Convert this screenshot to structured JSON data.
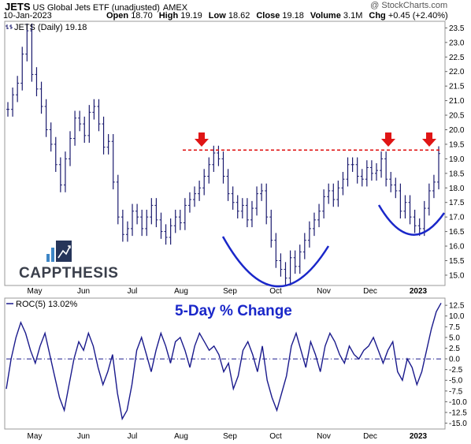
{
  "header": {
    "symbol": "JETS",
    "name": "US Global Jets ETF (unadjusted)",
    "exchange": "AMEX",
    "date": "10-Jan-2023",
    "open_label": "Open",
    "open": "18.70",
    "high_label": "High",
    "high": "19.19",
    "low_label": "Low",
    "low": "18.62",
    "close_label": "Close",
    "close": "19.18",
    "volume_label": "Volume",
    "volume": "3.1M",
    "chg_label": "Chg",
    "chg": "+0.45 (+2.40%)",
    "credit": "@ StockCharts.com"
  },
  "logo": {
    "text": "CAPPTHESIS"
  },
  "colors": {
    "price": "#1a1a6e",
    "roc": "#1a1a8c",
    "resistance": "#e01515",
    "arrows": "#e01515",
    "arcs": "#1a27c9",
    "zero_line": "#1a1a8c"
  },
  "chart_data": [
    {
      "type": "ohlc",
      "legend": "JETS (Daily) 19.18",
      "months": [
        "May",
        "Jun",
        "Jul",
        "Aug",
        "Sep",
        "Oct",
        "Nov",
        "Dec",
        "2023"
      ],
      "y_ticks": [
        "15.0",
        "15.5",
        "16.0",
        "16.5",
        "17.0",
        "17.5",
        "18.0",
        "18.5",
        "19.0",
        "19.5",
        "20.0",
        "20.5",
        "21.0",
        "21.5",
        "22.0",
        "22.5",
        "23.0",
        "23.5"
      ],
      "ylim": [
        14.7,
        23.7
      ],
      "close_series_note": "",
      "closes": [
        20.7,
        21.2,
        21.6,
        22.6,
        23.4,
        21.9,
        21.4,
        20.8,
        20.0,
        19.5,
        18.8,
        18.1,
        19.0,
        19.7,
        20.4,
        20.2,
        19.8,
        20.6,
        20.8,
        20.2,
        19.4,
        19.6,
        18.2,
        17.0,
        16.4,
        16.6,
        17.2,
        17.0,
        16.6,
        17.0,
        17.4,
        16.9,
        16.5,
        16.3,
        16.7,
        17.0,
        16.8,
        17.4,
        17.6,
        17.8,
        18.0,
        18.4,
        18.8,
        19.2,
        19.0,
        18.4,
        17.8,
        17.5,
        17.2,
        17.4,
        16.9,
        17.3,
        17.8,
        17.9,
        17.0,
        16.2,
        15.5,
        15.2,
        14.9,
        15.6,
        15.3,
        15.8,
        16.2,
        16.6,
        16.9,
        17.2,
        17.7,
        17.9,
        17.6,
        18.0,
        18.3,
        18.8,
        18.8,
        18.4,
        18.3,
        18.7,
        18.5,
        18.6,
        19.0,
        18.3,
        18.1,
        17.9,
        17.2,
        17.5,
        17.0,
        16.7,
        16.6,
        17.3,
        17.9,
        18.2,
        19.18
      ],
      "resistance": 19.3,
      "annotations": []
    },
    {
      "type": "line",
      "legend": "ROC(5) 13.02%",
      "title": "5-Day % Change",
      "y_ticks": [
        "12.5",
        "10.0",
        "7.5",
        "5.0",
        "2.5",
        "0.0",
        "-2.5",
        "-5.0",
        "-7.5",
        "-10.0",
        "-12.5",
        "-15.0"
      ],
      "ylim": [
        -16,
        14
      ],
      "values": [
        -7,
        0,
        5,
        8.5,
        6,
        2,
        -1,
        3,
        6,
        1,
        -4,
        -9,
        -12,
        -6,
        0,
        4,
        2,
        6,
        3,
        -2,
        -6,
        -3,
        1,
        -8,
        -14,
        -12,
        -6,
        2,
        5,
        1,
        -3,
        2,
        6,
        3,
        -1,
        4,
        5,
        2,
        -2,
        3,
        6,
        4,
        2,
        3,
        1,
        -3,
        -1,
        -7,
        -4,
        2,
        4,
        1,
        -3,
        3,
        -5,
        -9,
        -12,
        -8,
        -4,
        3,
        6,
        2,
        -2,
        4,
        1,
        -3,
        3,
        6,
        4,
        1,
        -1,
        3,
        1,
        0,
        2,
        3,
        5,
        2,
        -1,
        2,
        4,
        -3,
        -5,
        0,
        -2,
        -6,
        -3,
        2,
        7,
        11,
        13.02
      ]
    }
  ]
}
